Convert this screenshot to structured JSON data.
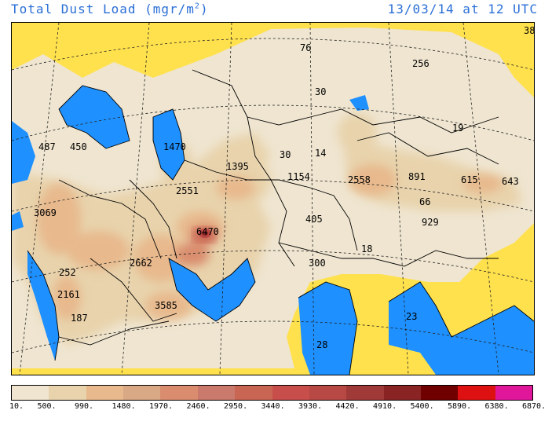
{
  "header": {
    "title_main": "Total Dust Load (mgr/m",
    "title_sup": "2",
    "title_end": ")",
    "datetime": "13/03/14 at 12 UTC"
  },
  "colors": {
    "title": "#2a6fd6",
    "sea": "#1e90ff",
    "no_data": "#ffe14d"
  },
  "map_values": [
    {
      "text": "76"
    },
    {
      "text": "256"
    },
    {
      "text": "38"
    },
    {
      "text": "30"
    },
    {
      "text": "19"
    },
    {
      "text": "487"
    },
    {
      "text": "450"
    },
    {
      "text": "1470"
    },
    {
      "text": "30"
    },
    {
      "text": "14"
    },
    {
      "text": "1395"
    },
    {
      "text": "1154"
    },
    {
      "text": "2558"
    },
    {
      "text": "891"
    },
    {
      "text": "615"
    },
    {
      "text": "643"
    },
    {
      "text": "2551"
    },
    {
      "text": "66"
    },
    {
      "text": "3069"
    },
    {
      "text": "405"
    },
    {
      "text": "929"
    },
    {
      "text": "6470"
    },
    {
      "text": "18"
    },
    {
      "text": "2662"
    },
    {
      "text": "300"
    },
    {
      "text": "252"
    },
    {
      "text": "2161"
    },
    {
      "text": "3585"
    },
    {
      "text": "187"
    },
    {
      "text": "23"
    },
    {
      "text": "28"
    }
  ],
  "legend": {
    "colors": [
      "#efe5d0",
      "#e8d3ac",
      "#e8b98d",
      "#d9a884",
      "#d98d6e",
      "#c97a6c",
      "#c96553",
      "#c84e4c",
      "#b84844",
      "#a03a38",
      "#8a2424",
      "#700000",
      "#dd1111",
      "#e0169b"
    ],
    "labels": [
      "10.",
      "500.",
      "990.",
      "1480.",
      "1970.",
      "2460.",
      "2950.",
      "3440.",
      "3930.",
      "4420.",
      "4910.",
      "5400.",
      "5890.",
      "6380.",
      "6870."
    ]
  }
}
